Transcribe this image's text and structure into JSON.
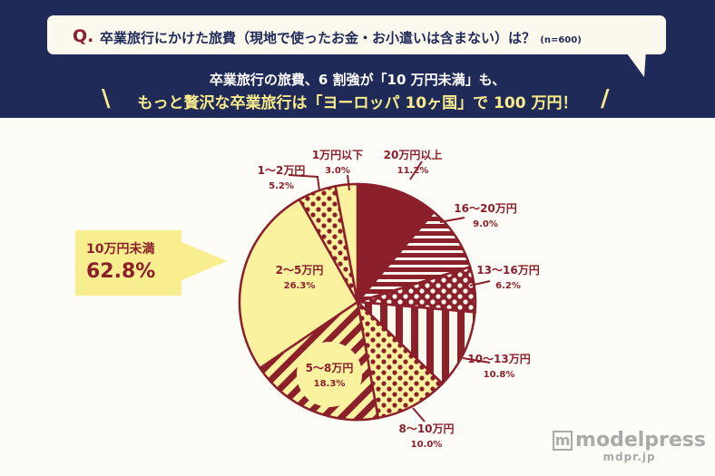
{
  "header": {
    "q_mark": "Q.",
    "question": "卒業旅行にかけた旅費（現地で使ったお金・お小遣いは含まない）は？",
    "sample": "(n=600)",
    "subtitle1": "卒業旅行の旅費、6 割強が「10 万円未満」も、",
    "subtitle2": "もっと贅沢な卒業旅行は「ヨーロッパ 10ヶ国」で 100 万円！",
    "slash_left": "\\",
    "slash_right": "/"
  },
  "callout": {
    "label": "10万円未満",
    "value": "62.8%"
  },
  "watermark": {
    "logo": "m",
    "brand": "modelpress",
    "url": "mdpr.jp"
  },
  "colors": {
    "navy": "#1f2a58",
    "dark_red": "#8b1f2a",
    "yellow": "#fbf2a0",
    "cream": "#fbf8ee"
  },
  "chart_data": {
    "type": "pie",
    "start": "top",
    "direction": "clockwise",
    "slices": [
      {
        "label": "20万円以上",
        "value": 11.2,
        "pct": "11.2%",
        "fill": "solid-red"
      },
      {
        "label": "16～20万円",
        "value": 9.0,
        "pct": "9.0%",
        "fill": "red-horizontal-stripes"
      },
      {
        "label": "13～16万円",
        "value": 6.2,
        "pct": "6.2%",
        "fill": "red-white-dots"
      },
      {
        "label": "10～13万円",
        "value": 10.8,
        "pct": "10.8%",
        "fill": "red-vertical-stripes"
      },
      {
        "label": "8～10万円",
        "value": 10.0,
        "pct": "10.0%",
        "fill": "yellow-red-dots"
      },
      {
        "label": "5～8万円",
        "value": 18.3,
        "pct": "18.3%",
        "fill": "yellow-diagonal-stripes"
      },
      {
        "label": "2～5万円",
        "value": 26.3,
        "pct": "26.3%",
        "fill": "solid-yellow"
      },
      {
        "label": "1～2万円",
        "value": 5.2,
        "pct": "5.2%",
        "fill": "yellow-red-dots"
      },
      {
        "label": "1万円以下",
        "value": 3.0,
        "pct": "3.0%",
        "fill": "solid-yellow"
      }
    ]
  }
}
